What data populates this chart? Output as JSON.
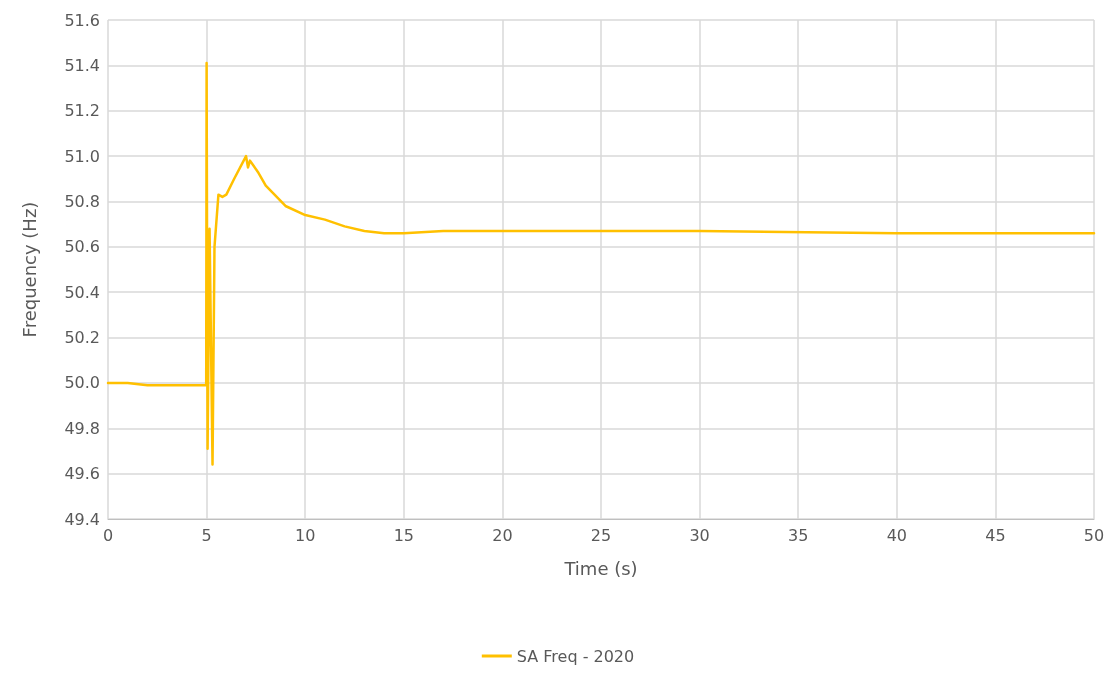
{
  "chart_data": {
    "type": "line",
    "xlabel": "Time (s)",
    "ylabel": "Frequency (Hz)",
    "xlim": [
      0,
      50
    ],
    "xticks": [
      0,
      5,
      10,
      15,
      20,
      25,
      30,
      35,
      40,
      45,
      50
    ],
    "ylim": [
      49.4,
      51.6
    ],
    "yticks": [
      49.4,
      49.6,
      49.8,
      {
        "value": 50,
        "label": "50.0"
      },
      50.2,
      50.4,
      50.6,
      50.8,
      {
        "value": 51,
        "label": "51.0"
      },
      51.2,
      51.4,
      51.6
    ],
    "grid": true,
    "legend": "bottom",
    "marker": "none",
    "line_style": "solid",
    "series": [
      {
        "name": "SA Freq - 2020",
        "color": "#ffc000",
        "x": [
          0,
          1,
          2,
          3,
          4,
          4.98,
          5.0,
          5.05,
          5.15,
          5.3,
          5.4,
          5.6,
          5.8,
          6.0,
          6.4,
          7.0,
          7.1,
          7.2,
          7.6,
          8,
          9,
          10,
          11,
          12,
          13,
          14,
          15,
          17,
          20,
          25,
          30,
          40,
          50
        ],
        "values": [
          50.0,
          50.0,
          49.99,
          49.99,
          49.99,
          49.99,
          51.41,
          49.71,
          50.68,
          49.64,
          50.6,
          50.83,
          50.82,
          50.83,
          50.9,
          51.0,
          50.95,
          50.98,
          50.93,
          50.87,
          50.78,
          50.74,
          50.72,
          50.69,
          50.67,
          50.66,
          50.66,
          50.67,
          50.67,
          50.67,
          50.67,
          50.66,
          50.66
        ]
      }
    ]
  }
}
